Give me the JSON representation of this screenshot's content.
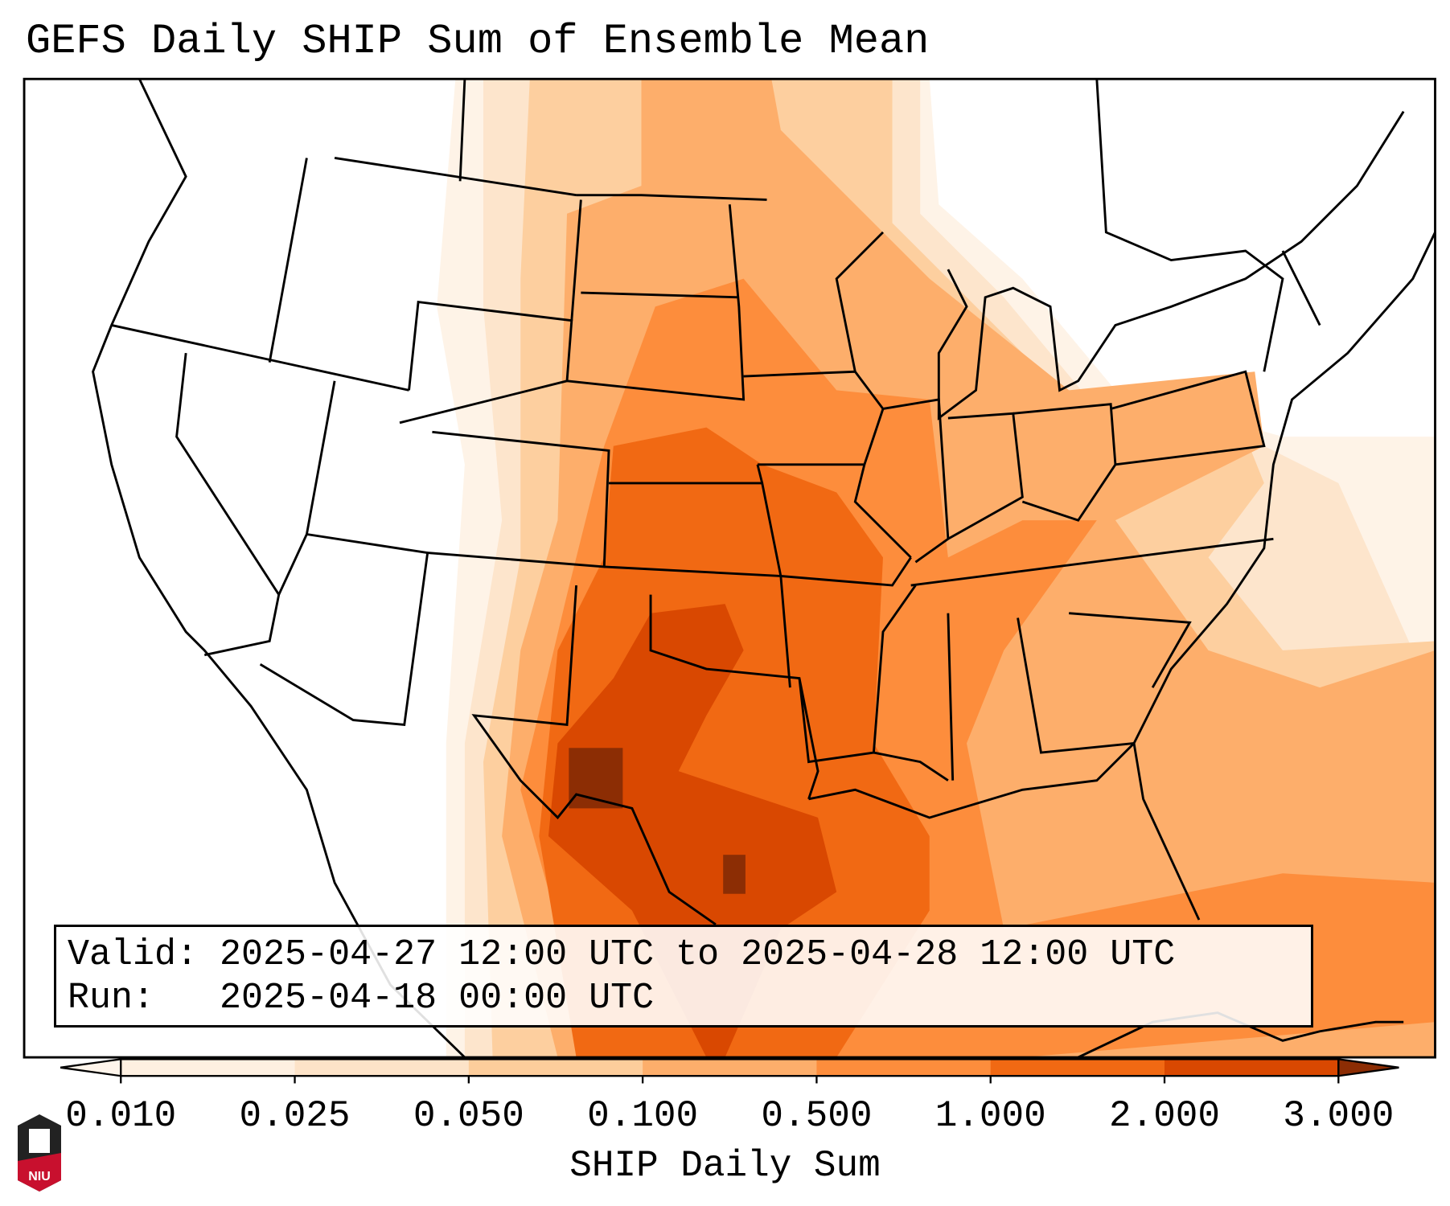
{
  "title": "GEFS Daily SHIP Sum of Ensemble Mean",
  "info": {
    "valid_label": "Valid:",
    "valid_value": "2025-04-27 12:00 UTC to 2025-04-28 12:00 UTC",
    "run_label": "Run:",
    "run_value": "2025-04-18 00:00 UTC"
  },
  "colorbar": {
    "label": "SHIP Daily Sum",
    "ticks": [
      "0.010",
      "0.025",
      "0.050",
      "0.100",
      "0.500",
      "1.000",
      "2.000",
      "3.000"
    ],
    "colors": [
      "#fff5eb",
      "#fef0e1",
      "#fde3c8",
      "#fdcd9b",
      "#fdae6b",
      "#fd8d3c",
      "#f16913",
      "#d94801",
      "#8c2d04"
    ]
  },
  "logo": {
    "text": "NIU"
  }
}
